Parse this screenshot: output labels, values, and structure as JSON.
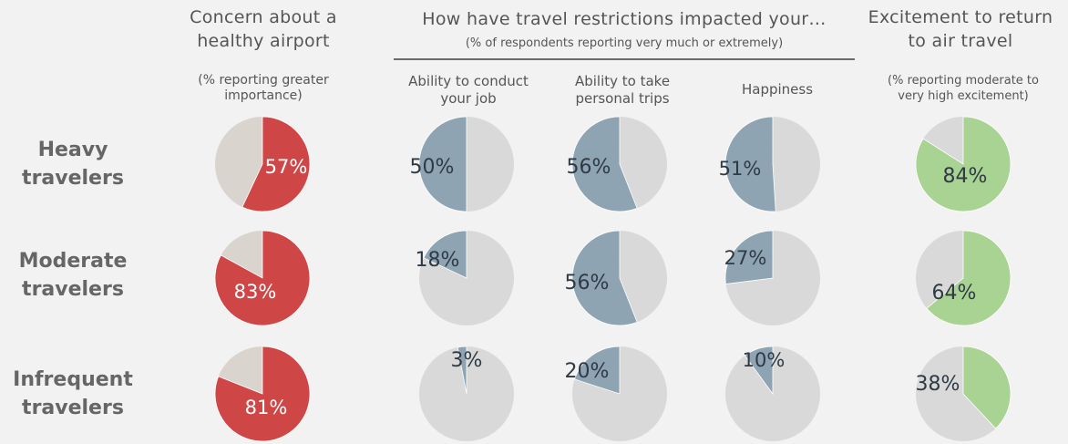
{
  "headers": {
    "concern": {
      "title_line1": "Concern about a",
      "title_line2": "healthy airport",
      "sub_line1": "(% reporting greater",
      "sub_line2": "importance)"
    },
    "restrictions": {
      "title": "How have travel restrictions impacted your…",
      "sub": "(% of respondents reporting very much or extremely)",
      "columns": [
        {
          "line1": "Ability to conduct",
          "line2": "your job"
        },
        {
          "line1": "Ability to take",
          "line2": "personal trips"
        },
        {
          "line1": "Happiness",
          "line2": ""
        }
      ]
    },
    "excitement": {
      "title_line1": "Excitement to return",
      "title_line2": "to air travel",
      "sub_line1": "(% reporting moderate to",
      "sub_line2": "very high excitement)"
    }
  },
  "rows": [
    {
      "line1": "Heavy",
      "line2": "travelers"
    },
    {
      "line1": "Moderate",
      "line2": "travelers"
    },
    {
      "line1": "Infrequent",
      "line2": "travelers"
    }
  ],
  "colors": {
    "concern": "#cf4647",
    "restriction": "#8ea4b3",
    "excitement": "#a9d392",
    "remainder_warm": "#d9d4ce",
    "remainder": "#d9d9d9",
    "label_light": "#ffffff",
    "label_dark": "#2f3a44"
  },
  "chart_data": [
    {
      "type": "pie",
      "title": "Concern about a healthy airport",
      "categories": [
        "Heavy travelers",
        "Moderate travelers",
        "Infrequent travelers"
      ],
      "values": [
        57,
        83,
        81
      ],
      "labels": [
        "57%",
        "83%",
        "81%"
      ]
    },
    {
      "type": "pie",
      "title": "Ability to conduct your job",
      "categories": [
        "Heavy travelers",
        "Moderate travelers",
        "Infrequent travelers"
      ],
      "values": [
        50,
        18,
        3
      ],
      "labels": [
        "50%",
        "18%",
        "3%"
      ]
    },
    {
      "type": "pie",
      "title": "Ability to take personal trips",
      "categories": [
        "Heavy travelers",
        "Moderate travelers",
        "Infrequent travelers"
      ],
      "values": [
        56,
        56,
        20
      ],
      "labels": [
        "56%",
        "56%",
        "20%"
      ]
    },
    {
      "type": "pie",
      "title": "Happiness",
      "categories": [
        "Heavy travelers",
        "Moderate travelers",
        "Infrequent travelers"
      ],
      "values": [
        51,
        27,
        10
      ],
      "labels": [
        "51%",
        "27%",
        "10%"
      ]
    },
    {
      "type": "pie",
      "title": "Excitement to return to air travel",
      "categories": [
        "Heavy travelers",
        "Moderate travelers",
        "Infrequent travelers"
      ],
      "values": [
        84,
        64,
        38
      ],
      "labels": [
        "84%",
        "64%",
        "38%"
      ]
    }
  ]
}
